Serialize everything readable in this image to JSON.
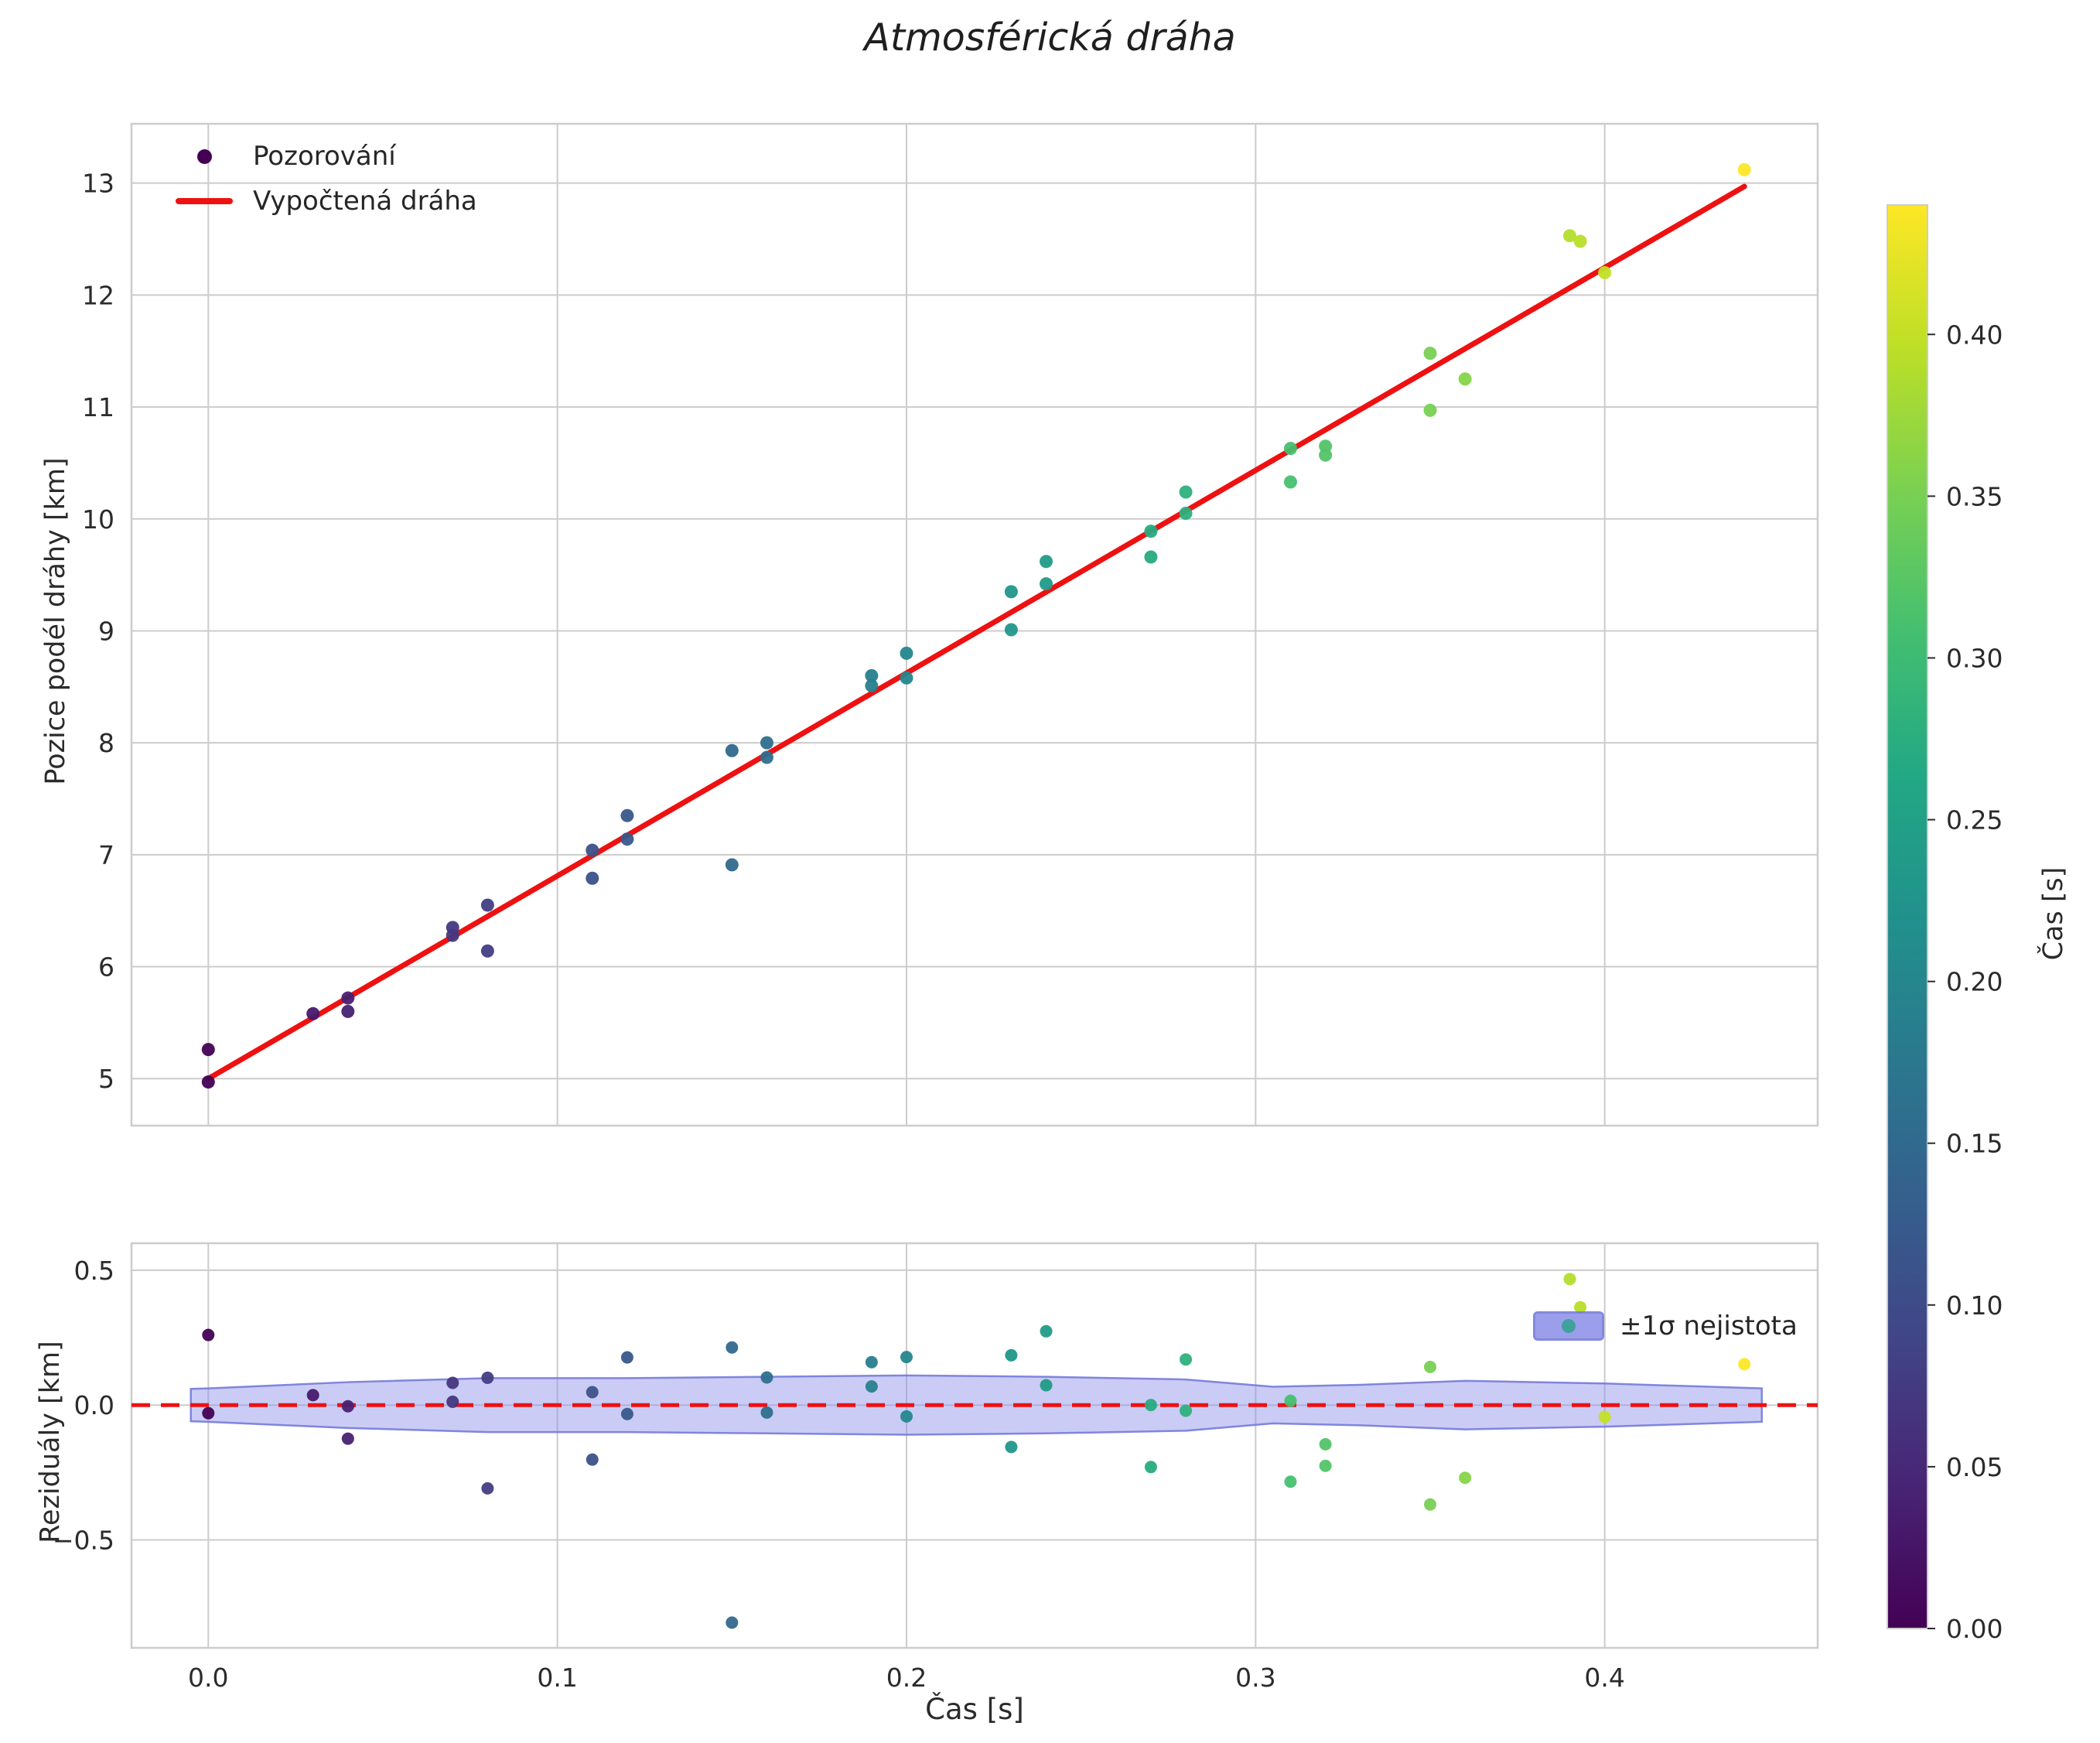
{
  "title": "Atmosférická dráha",
  "colors": {
    "background": "#ffffff",
    "grid": "#cccccc",
    "axes_border": "#cccccc",
    "text": "#2b2b2b",
    "fit_line": "#ee1111",
    "band_fill": "#8a8fe8",
    "band_edge": "#6f74d8",
    "legend_band_dot": "#21918c"
  },
  "chart_data": [
    {
      "type": "scatter",
      "title": "Atmosférická dráha",
      "ylabel": "Pozice podél dráhy [km]",
      "xlim": [
        -0.022,
        0.461
      ],
      "ylim": [
        4.58,
        13.53
      ],
      "yticks": [
        5,
        6,
        7,
        8,
        9,
        10,
        11,
        12,
        13
      ],
      "ytick_labels": [
        "5",
        "6",
        "7",
        "8",
        "9",
        "10",
        "11",
        "12",
        "13"
      ],
      "grid": true,
      "legend": {
        "position": "upper-left",
        "entries": [
          "Pozorování",
          "Vypočtená dráha"
        ]
      },
      "series": [
        {
          "name": "Pozorování",
          "type": "scatter",
          "colormap": "viridis",
          "color_by": "x",
          "x": [
            0.0,
            0.0,
            0.03,
            0.04,
            0.04,
            0.07,
            0.07,
            0.08,
            0.08,
            0.11,
            0.11,
            0.12,
            0.12,
            0.15,
            0.15,
            0.16,
            0.16,
            0.19,
            0.19,
            0.2,
            0.2,
            0.23,
            0.23,
            0.24,
            0.24,
            0.27,
            0.27,
            0.28,
            0.28,
            0.31,
            0.31,
            0.32,
            0.32,
            0.35,
            0.35,
            0.36,
            0.39,
            0.393,
            0.4,
            0.44
          ],
          "y": [
            5.26,
            4.97,
            5.58,
            5.72,
            5.6,
            6.35,
            6.28,
            6.55,
            6.14,
            7.04,
            6.79,
            7.35,
            7.14,
            7.93,
            6.91,
            8.0,
            7.87,
            8.6,
            8.51,
            8.8,
            8.58,
            9.35,
            9.01,
            9.62,
            9.42,
            9.89,
            9.66,
            10.24,
            10.05,
            10.63,
            10.33,
            10.65,
            10.57,
            11.48,
            10.97,
            11.25,
            12.53,
            12.48,
            12.2,
            13.12
          ]
        },
        {
          "name": "Vypočtená dráha",
          "type": "line",
          "color": "#ee1111",
          "intercept": 5.0,
          "slope": 18.11,
          "x": [
            0.0,
            0.44
          ],
          "y": [
            5.0,
            12.97
          ]
        }
      ]
    },
    {
      "type": "scatter",
      "ylabel": "Reziduály [km]",
      "xlabel": "Čas [s]",
      "xlim": [
        -0.022,
        0.461
      ],
      "ylim": [
        -0.9,
        0.6
      ],
      "yticks": [
        -0.5,
        0.0,
        0.5
      ],
      "ytick_labels": [
        "−0.5",
        "0.0",
        "0.5"
      ],
      "xticks": [
        0.0,
        0.1,
        0.2,
        0.3,
        0.4
      ],
      "xtick_labels": [
        "0.0",
        "0.1",
        "0.2",
        "0.3",
        "0.4"
      ],
      "grid": true,
      "legend": {
        "position": "upper-right",
        "entries": [
          "±1σ nejistota"
        ]
      },
      "zero_line": {
        "y": 0.0,
        "color": "#ee1111",
        "style": "dashed"
      },
      "band": {
        "label": "±1σ nejistota",
        "t": [
          -0.005,
          0.0,
          0.04,
          0.08,
          0.12,
          0.16,
          0.2,
          0.24,
          0.28,
          0.305,
          0.33,
          0.36,
          0.4,
          0.445
        ],
        "sigma": [
          0.06,
          0.062,
          0.085,
          0.1,
          0.1,
          0.105,
          0.11,
          0.105,
          0.095,
          0.068,
          0.075,
          0.09,
          0.08,
          0.062
        ]
      },
      "residuals_are": "observation_minus_fit"
    }
  ],
  "colorbar": {
    "label": "Čas [s]",
    "min": 0.0,
    "max": 0.44,
    "tick_values": [
      0.0,
      0.05,
      0.1,
      0.15,
      0.2,
      0.25,
      0.3,
      0.35,
      0.4
    ],
    "tick_labels": [
      "0.00",
      "0.05",
      "0.10",
      "0.15",
      "0.20",
      "0.25",
      "0.30",
      "0.35",
      "0.40"
    ],
    "viridis_stops": [
      "#440154",
      "#482475",
      "#414487",
      "#355f8d",
      "#2a788e",
      "#21918c",
      "#22a884",
      "#44bf70",
      "#7ad151",
      "#bddf26",
      "#fde725"
    ]
  }
}
